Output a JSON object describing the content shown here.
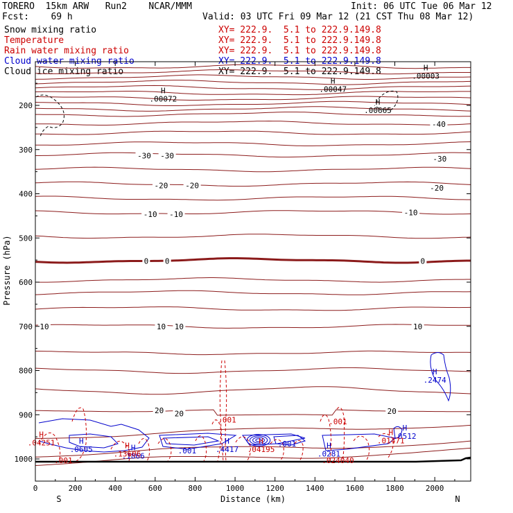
{
  "header": {
    "model": "TORERO  15km ARW   Run2    NCAR/MMM",
    "init": "Init: 06 UTC Tue 06 Mar 12",
    "fcst": "Fcst:    69 h",
    "valid": "Valid: 03 UTC Fri 09 Mar 12 (21 CST Thu 08 Mar 12)"
  },
  "fields": [
    {
      "name": "Snow mixing ratio",
      "xy": "XY= 222.9.  5.1 to 222.9.149.8",
      "color": "#000000",
      "xy_color": "#cc0000"
    },
    {
      "name": "Temperature",
      "xy": "XY= 222.9.  5.1 to 222.9.149.8",
      "color": "#cc0000",
      "xy_color": "#cc0000"
    },
    {
      "name": "Rain water mixing ratio",
      "xy": "XY= 222.9.  5.1 to 222.9.149.8",
      "color": "#cc0000",
      "xy_color": "#cc0000"
    },
    {
      "name": "Cloud water mixing ratio",
      "xy": "XY= 222.9.  5.1 to 222.9.149.8",
      "color": "#0000cc",
      "xy_color": "#0000cc"
    },
    {
      "name": "Cloud ice mixing ratio",
      "xy": "XY= 222.9.  5.1 to 222.9.149.8",
      "color": "#000000",
      "xy_color": "#000000"
    }
  ],
  "chart_data": {
    "type": "contour",
    "xlabel": "Distance (km)",
    "ylabel": "Pressure (hPa)",
    "xlim": [
      0,
      2180
    ],
    "ylim": [
      1048,
      100
    ],
    "x_ticks": [
      0,
      200,
      400,
      600,
      800,
      1000,
      1200,
      1400,
      1600,
      1800,
      2000
    ],
    "y_ticks": [
      200,
      300,
      400,
      500,
      600,
      700,
      800,
      900,
      1000
    ],
    "x_end_labels": {
      "left": "S",
      "right": "N"
    },
    "temperature_isotherms": [
      {
        "label": "-40",
        "p": 240
      },
      {
        "label": "-30",
        "p": 312
      },
      {
        "label": "-20",
        "p": 378
      },
      {
        "label": "-10",
        "p": 442
      },
      {
        "label": "0",
        "p": 551
      },
      {
        "label": "10",
        "p": 700
      },
      {
        "label": "20",
        "p": 890
      }
    ],
    "temperature_labels": [
      {
        "text": "-40",
        "x": 2020,
        "p": 242
      },
      {
        "text": "-30",
        "x": 545,
        "p": 314
      },
      {
        "text": "-30",
        "x": 660,
        "p": 314
      },
      {
        "text": "-30",
        "x": 2025,
        "p": 321
      },
      {
        "text": "-20",
        "x": 630,
        "p": 381
      },
      {
        "text": "-20",
        "x": 785,
        "p": 381
      },
      {
        "text": "-20",
        "x": 2010,
        "p": 387
      },
      {
        "text": "-10",
        "x": 575,
        "p": 446
      },
      {
        "text": "-10",
        "x": 705,
        "p": 446
      },
      {
        "text": "-10",
        "x": 1880,
        "p": 442
      },
      {
        "text": "0",
        "x": 555,
        "p": 552
      },
      {
        "text": "0",
        "x": 660,
        "p": 552
      },
      {
        "text": "0",
        "x": 1940,
        "p": 552
      },
      {
        "text": "10",
        "x": 45,
        "p": 700
      },
      {
        "text": "10",
        "x": 630,
        "p": 700
      },
      {
        "text": "10",
        "x": 720,
        "p": 700
      },
      {
        "text": "10",
        "x": 1915,
        "p": 700
      },
      {
        "text": "20",
        "x": 620,
        "p": 890
      },
      {
        "text": "20",
        "x": 720,
        "p": 897
      },
      {
        "text": "20",
        "x": 1785,
        "p": 892
      }
    ],
    "maxima_labels": [
      {
        "field": "Cloud ice mixing ratio",
        "H": true,
        "text": ".00072",
        "x": 640,
        "p": 182
      },
      {
        "field": "Cloud ice mixing ratio",
        "H": true,
        "text": ".00047",
        "x": 1490,
        "p": 160
      },
      {
        "field": "Cloud ice mixing ratio",
        "H": true,
        "text": ".00665",
        "x": 1715,
        "p": 208
      },
      {
        "field": "Cloud ice mixing ratio",
        "H": true,
        "text": ".00003",
        "x": 1955,
        "p": 130
      },
      {
        "field": "Cloud water mixing ratio",
        "H": true,
        "text": ".2474",
        "x": 2000,
        "p": 818
      },
      {
        "field": "Cloud water mixing ratio",
        "H": true,
        "text": ".0512",
        "x": 1850,
        "p": 945
      },
      {
        "field": "Cloud water mixing ratio",
        "H": true,
        "text": ".0605",
        "x": 230,
        "p": 975
      },
      {
        "field": "Cloud water mixing ratio",
        "H": true,
        "text": ".1866",
        "x": 490,
        "p": 990
      },
      {
        "field": "Cloud water mixing ratio",
        "H": true,
        "text": ".4417",
        "x": 960,
        "p": 975
      },
      {
        "field": "Cloud water mixing ratio",
        "H": false,
        "text": ".001",
        "x": 1260,
        "p": 962
      },
      {
        "field": "Cloud water mixing ratio",
        "H": false,
        "text": ".001",
        "x": 760,
        "p": 978
      },
      {
        "field": "Cloud water mixing ratio",
        "H": true,
        "text": ".0281",
        "x": 1470,
        "p": 985
      },
      {
        "field": "Rain water mixing ratio",
        "H": true,
        "text": ".04251",
        "x": 30,
        "p": 960
      },
      {
        "field": "Rain water mixing ratio",
        "H": true,
        "text": ".13606",
        "x": 460,
        "p": 985
      },
      {
        "field": "Rain water mixing ratio",
        "H": true,
        "text": ".04195",
        "x": 1130,
        "p": 975
      },
      {
        "field": "Rain water mixing ratio",
        "H": true,
        "text": ".01471",
        "x": 1780,
        "p": 955
      },
      {
        "field": "Rain water mixing ratio",
        "H": false,
        "text": ".024040",
        "x": 1515,
        "p": 1000
      },
      {
        "field": "Rain water mixing ratio",
        "H": false,
        "text": ".001",
        "x": 960,
        "p": 908
      },
      {
        "field": "Rain water mixing ratio",
        "H": false,
        "text": ".001",
        "x": 1515,
        "p": 912
      },
      {
        "field": "Rain water mixing ratio",
        "H": false,
        "text": ".001",
        "x": 140,
        "p": 1000
      }
    ]
  }
}
